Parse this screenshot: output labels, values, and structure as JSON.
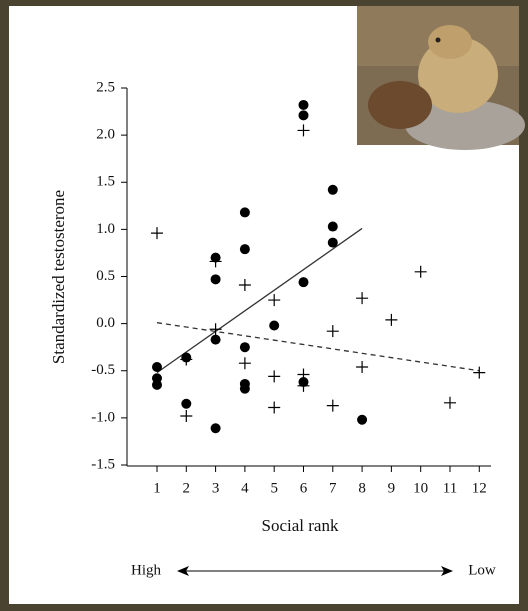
{
  "chart_data": {
    "type": "scatter",
    "x_label": "Social rank",
    "y_label": "Standardized testosterone",
    "left_note": "High",
    "right_note": "Low",
    "xlim": [
      0,
      12.4
    ],
    "ylim": [
      -1.5,
      2.5
    ],
    "xticks": [
      1,
      2,
      3,
      4,
      5,
      6,
      7,
      8,
      9,
      10,
      11,
      12
    ],
    "yticks": [
      {
        "value": -1.5,
        "label": "-1.5"
      },
      {
        "value": -1,
        "label": "-1.0"
      },
      {
        "value": -0.5,
        "label": "-0.5"
      },
      {
        "value": 0,
        "label": "0.0"
      },
      0.5,
      {
        "value": 1,
        "label": "1.0"
      },
      1.5,
      {
        "value": 2,
        "label": "2.0"
      },
      2.5
    ],
    "series": [
      {
        "marker": "circle",
        "color": "#000000",
        "x": [
          1,
          1,
          1,
          2,
          2,
          3,
          3,
          3,
          3,
          4,
          4,
          4,
          4,
          4,
          5,
          6,
          6,
          6,
          6,
          7,
          7,
          7,
          8
        ],
        "values": [
          -0.46,
          -0.58,
          -0.65,
          -0.36,
          -0.85,
          0.7,
          0.47,
          -0.17,
          -1.11,
          1.18,
          0.79,
          -0.25,
          -0.64,
          -0.69,
          -0.02,
          2.32,
          2.21,
          0.44,
          -0.62,
          1.42,
          1.03,
          0.86,
          -1.02
        ]
      },
      {
        "marker": "plus",
        "color": "#000000",
        "x": [
          1,
          2,
          2,
          3,
          3,
          4,
          4,
          5,
          5,
          5,
          6,
          6,
          6,
          7,
          7,
          8,
          8,
          9,
          10,
          11,
          12
        ],
        "values": [
          0.96,
          -0.38,
          -0.98,
          0.66,
          -0.06,
          0.41,
          -0.42,
          0.25,
          -0.56,
          -0.89,
          2.05,
          -0.54,
          -0.66,
          -0.08,
          -0.87,
          0.27,
          -0.46,
          0.04,
          0.55,
          -0.84,
          -0.52
        ]
      }
    ],
    "lines": [
      {
        "style": "solid",
        "x": [
          1,
          8
        ],
        "y": [
          -0.52,
          1.01
        ]
      },
      {
        "style": "dashed",
        "x": [
          1,
          12
        ],
        "y": [
          0.01,
          -0.5
        ]
      }
    ]
  }
}
